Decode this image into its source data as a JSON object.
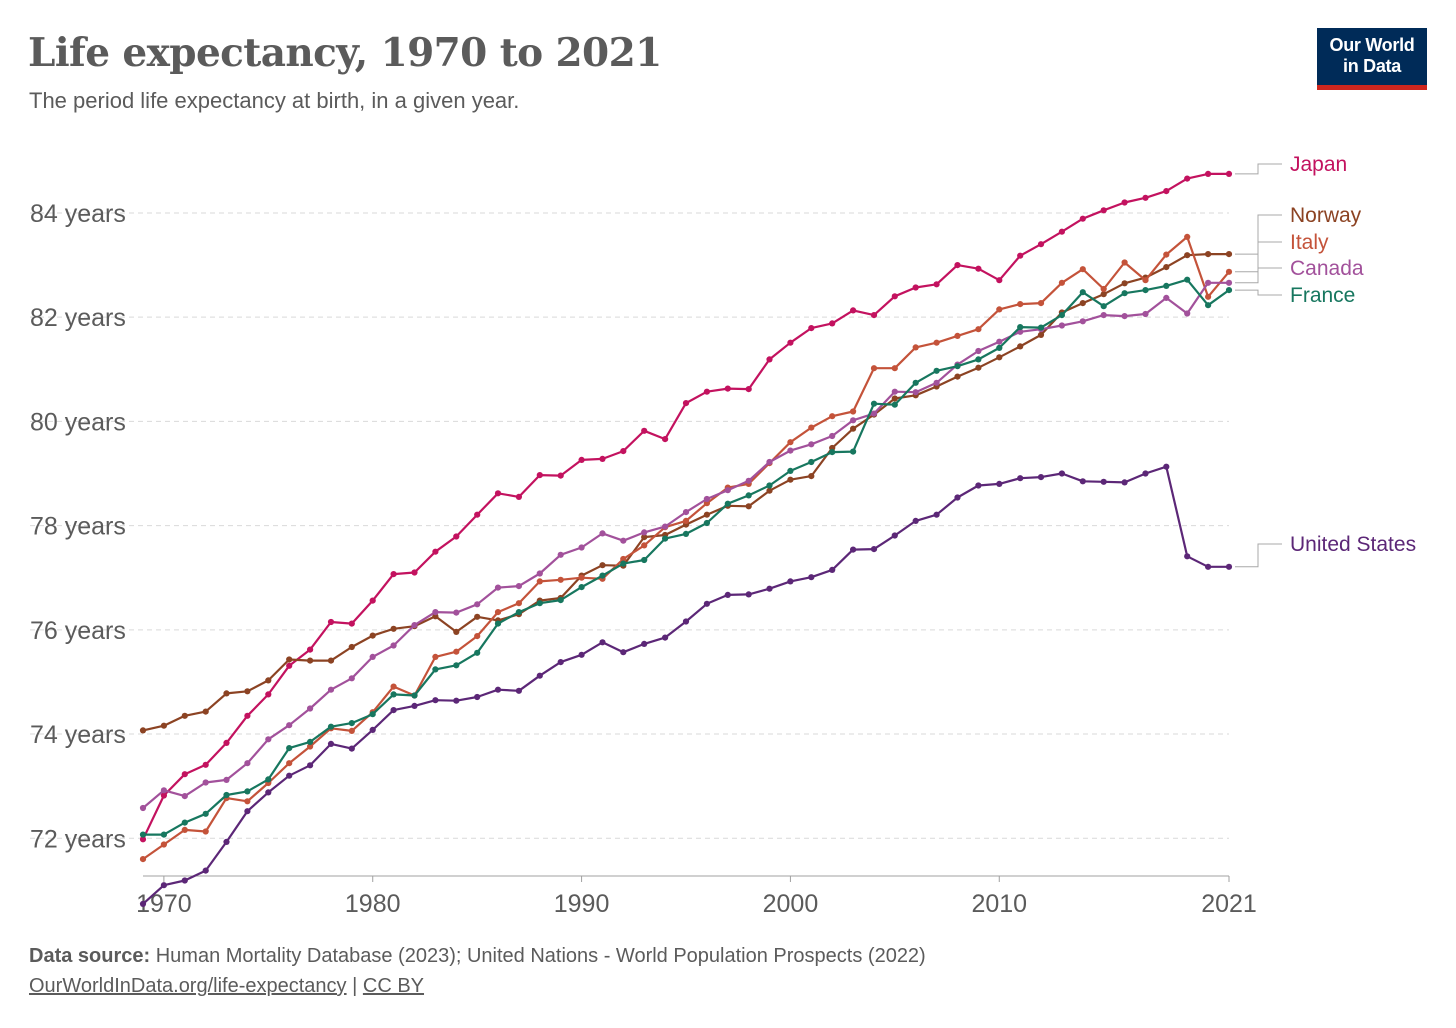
{
  "header": {
    "title": "Life expectancy, 1970 to 2021",
    "subtitle": "The period life expectancy at birth, in a given year.",
    "logo_line1": "Our World",
    "logo_line2": "in Data"
  },
  "footer": {
    "source_label": "Data source:",
    "source_text": "Human Mortality Database (2023); United Nations - World Population Prospects (2022)",
    "link_url_text": "OurWorldInData.org/life-expectancy",
    "separator": "|",
    "license_text": "CC BY"
  },
  "colors": {
    "Japan": "#c3125f",
    "Norway": "#8c4323",
    "Italy": "#c4533a",
    "Canada": "#a2519b",
    "France": "#17775f",
    "United States": "#5c2777",
    "grid": "#d9d9d9",
    "axis_text": "#5b5b5b"
  },
  "chart_data": {
    "type": "line",
    "title": "Life expectancy, 1970 to 2021",
    "subtitle": "The period life expectancy at birth, in a given year.",
    "x": [
      1969,
      1970,
      1971,
      1972,
      1973,
      1974,
      1975,
      1976,
      1977,
      1978,
      1979,
      1980,
      1981,
      1982,
      1983,
      1984,
      1985,
      1986,
      1987,
      1988,
      1989,
      1990,
      1991,
      1992,
      1993,
      1994,
      1995,
      1996,
      1997,
      1998,
      1999,
      2000,
      2001,
      2002,
      2003,
      2004,
      2005,
      2006,
      2007,
      2008,
      2009,
      2010,
      2011,
      2012,
      2013,
      2014,
      2015,
      2016,
      2017,
      2018,
      2019,
      2020,
      2021
    ],
    "xlim": [
      1969,
      2021
    ],
    "ylim": [
      70.7,
      85.4
    ],
    "x_ticks": [
      1970,
      1980,
      1990,
      2000,
      2010,
      2021
    ],
    "y_ticks": [
      {
        "value": 72,
        "label": "72 years"
      },
      {
        "value": 74,
        "label": "74 years"
      },
      {
        "value": 76,
        "label": "76 years"
      },
      {
        "value": 78,
        "label": "78 years"
      },
      {
        "value": 80,
        "label": "80 years"
      },
      {
        "value": 82,
        "label": "82 years"
      },
      {
        "value": 84,
        "label": "84 years"
      }
    ],
    "grid": true,
    "legend": "right-end-labels",
    "series": [
      {
        "name": "Japan",
        "values": [
          71.98,
          72.82,
          73.23,
          73.41,
          73.83,
          74.35,
          74.76,
          75.31,
          75.62,
          76.15,
          76.12,
          76.56,
          77.07,
          77.1,
          77.5,
          77.79,
          78.21,
          78.62,
          78.55,
          78.97,
          78.96,
          79.26,
          79.28,
          79.43,
          79.82,
          79.66,
          80.35,
          80.57,
          80.63,
          80.62,
          81.19,
          81.51,
          81.79,
          81.88,
          82.13,
          82.04,
          82.4,
          82.57,
          82.63,
          83.0,
          82.93,
          82.71,
          83.18,
          83.4,
          83.64,
          83.89,
          84.05,
          84.2,
          84.29,
          84.42,
          84.66,
          84.75,
          84.75
        ]
      },
      {
        "name": "Norway",
        "values": [
          74.07,
          74.16,
          74.35,
          74.43,
          74.78,
          74.82,
          75.03,
          75.43,
          75.41,
          75.41,
          75.67,
          75.89,
          76.02,
          76.07,
          76.26,
          75.96,
          76.25,
          76.18,
          76.3,
          76.56,
          76.61,
          77.04,
          77.24,
          77.23,
          77.78,
          77.82,
          78.02,
          78.21,
          78.38,
          78.37,
          78.67,
          78.88,
          78.95,
          79.49,
          79.86,
          80.13,
          80.44,
          80.5,
          80.67,
          80.86,
          81.03,
          81.23,
          81.44,
          81.66,
          82.09,
          82.27,
          82.44,
          82.65,
          82.76,
          82.96,
          83.19,
          83.21,
          83.21
        ]
      },
      {
        "name": "Italy",
        "values": [
          71.6,
          71.88,
          72.16,
          72.13,
          72.77,
          72.71,
          73.06,
          73.44,
          73.76,
          74.11,
          74.06,
          74.42,
          74.91,
          74.74,
          75.48,
          75.58,
          75.88,
          76.34,
          76.51,
          76.93,
          76.96,
          77.0,
          76.98,
          77.36,
          77.62,
          77.97,
          78.09,
          78.43,
          78.73,
          78.8,
          79.2,
          79.6,
          79.88,
          80.1,
          80.19,
          81.02,
          81.02,
          81.42,
          81.51,
          81.64,
          81.77,
          82.15,
          82.25,
          82.27,
          82.66,
          82.92,
          82.54,
          83.05,
          82.71,
          83.2,
          83.54,
          82.39,
          82.87
        ]
      },
      {
        "name": "Canada",
        "values": [
          72.58,
          72.92,
          72.81,
          73.07,
          73.12,
          73.44,
          73.9,
          74.17,
          74.49,
          74.85,
          75.07,
          75.48,
          75.7,
          76.09,
          76.34,
          76.33,
          76.49,
          76.81,
          76.84,
          77.08,
          77.44,
          77.58,
          77.85,
          77.71,
          77.87,
          77.98,
          78.26,
          78.51,
          78.68,
          78.86,
          79.22,
          79.44,
          79.56,
          79.72,
          80.02,
          80.15,
          80.57,
          80.56,
          80.74,
          81.09,
          81.35,
          81.53,
          81.72,
          81.77,
          81.84,
          81.92,
          82.04,
          82.02,
          82.06,
          82.37,
          82.07,
          82.66,
          82.66
        ]
      },
      {
        "name": "France",
        "values": [
          72.07,
          72.07,
          72.3,
          72.47,
          72.83,
          72.9,
          73.13,
          73.73,
          73.85,
          74.14,
          74.21,
          74.38,
          74.76,
          74.74,
          75.24,
          75.32,
          75.56,
          76.12,
          76.34,
          76.51,
          76.57,
          76.82,
          77.04,
          77.27,
          77.34,
          77.75,
          77.84,
          78.05,
          78.42,
          78.58,
          78.77,
          79.05,
          79.22,
          79.41,
          79.42,
          80.34,
          80.32,
          80.74,
          80.97,
          81.06,
          81.19,
          81.41,
          81.81,
          81.8,
          82.04,
          82.48,
          82.21,
          82.46,
          82.52,
          82.6,
          82.72,
          82.23,
          82.52
        ]
      },
      {
        "name": "United States",
        "values": [
          70.74,
          71.1,
          71.19,
          71.38,
          71.93,
          72.52,
          72.88,
          73.2,
          73.4,
          73.81,
          73.72,
          74.08,
          74.46,
          74.54,
          74.65,
          74.64,
          74.71,
          74.85,
          74.83,
          75.12,
          75.38,
          75.52,
          75.76,
          75.57,
          75.73,
          75.85,
          76.16,
          76.5,
          76.67,
          76.68,
          76.79,
          76.93,
          77.01,
          77.15,
          77.54,
          77.55,
          77.81,
          78.09,
          78.21,
          78.54,
          78.77,
          78.8,
          78.91,
          78.93,
          79.0,
          78.85,
          78.84,
          78.83,
          79.0,
          79.13,
          77.41,
          77.21,
          77.21
        ]
      }
    ]
  }
}
